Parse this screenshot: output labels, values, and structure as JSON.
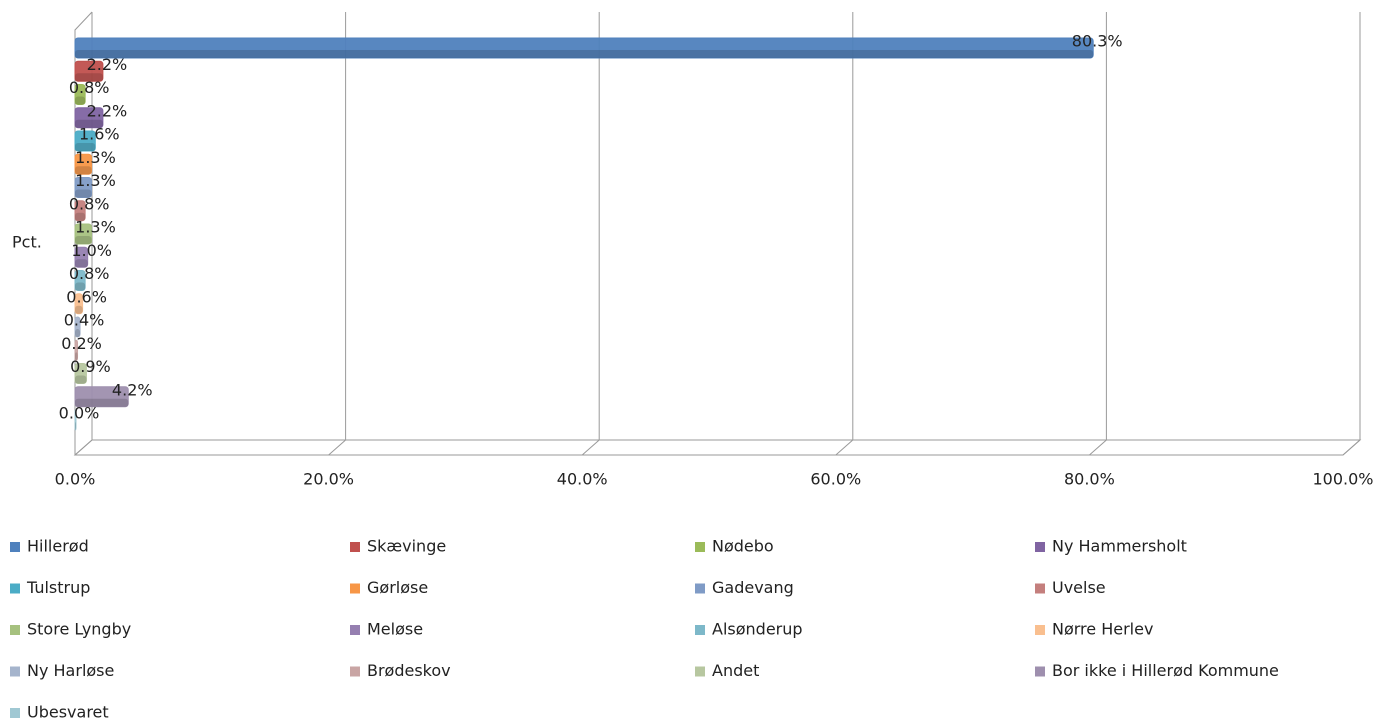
{
  "chart_data": {
    "type": "bar",
    "orientation": "horizontal",
    "categories": [
      "Pct."
    ],
    "series": [
      {
        "name": "Hillerød",
        "color": "#4F81BD",
        "values": [
          80.3
        ],
        "value_labels": [
          "80.3%"
        ]
      },
      {
        "name": "Skævinge",
        "color": "#C0504D",
        "values": [
          2.2
        ],
        "value_labels": [
          "2.2%"
        ]
      },
      {
        "name": "Nødebo",
        "color": "#9BBB59",
        "values": [
          0.8
        ],
        "value_labels": [
          "0.8%"
        ]
      },
      {
        "name": "Ny Hammersholt",
        "color": "#8064A2",
        "values": [
          2.2
        ],
        "value_labels": [
          "2.2%"
        ]
      },
      {
        "name": "Tulstrup",
        "color": "#4BACC6",
        "values": [
          1.6
        ],
        "value_labels": [
          "1.6%"
        ]
      },
      {
        "name": "Gørløse",
        "color": "#F79646",
        "values": [
          1.3
        ],
        "value_labels": [
          "1.3%"
        ]
      },
      {
        "name": "Gadevang",
        "color": "#7F9BC6",
        "values": [
          1.3
        ],
        "value_labels": [
          "1.3%"
        ]
      },
      {
        "name": "Uvelse",
        "color": "#C47F7D",
        "values": [
          0.8
        ],
        "value_labels": [
          "0.8%"
        ]
      },
      {
        "name": "Store Lyngby",
        "color": "#A6C17F",
        "values": [
          1.3
        ],
        "value_labels": [
          "1.3%"
        ]
      },
      {
        "name": "Meløse",
        "color": "#957FB0",
        "values": [
          1.0
        ],
        "value_labels": [
          "1.0%"
        ]
      },
      {
        "name": "Alsønderup",
        "color": "#7DB8C9",
        "values": [
          0.8
        ],
        "value_labels": [
          "0.8%"
        ]
      },
      {
        "name": "Nørre Herlev",
        "color": "#F9BF8F",
        "values": [
          0.6
        ],
        "value_labels": [
          "0.6%"
        ]
      },
      {
        "name": "Ny Harløse",
        "color": "#A5B4CC",
        "values": [
          0.4
        ],
        "value_labels": [
          "0.4%"
        ]
      },
      {
        "name": "Brødeskov",
        "color": "#C9A5A4",
        "values": [
          0.2
        ],
        "value_labels": [
          "0.2%"
        ]
      },
      {
        "name": "Andet",
        "color": "#B7C7A0",
        "values": [
          0.9
        ],
        "value_labels": [
          "0.9%"
        ]
      },
      {
        "name": "Bor ikke i Hillerød Kommune",
        "color": "#9E8FAE",
        "values": [
          4.2
        ],
        "value_labels": [
          "4.2%"
        ]
      },
      {
        "name": "Ubesvaret",
        "color": "#A0C8D3",
        "values": [
          0.0
        ],
        "value_labels": [
          "0.0%"
        ]
      }
    ],
    "xlim": [
      0,
      100
    ],
    "xticks": [
      {
        "value": 0,
        "label": "0.0%"
      },
      {
        "value": 20,
        "label": "20.0%"
      },
      {
        "value": 40,
        "label": "40.0%"
      },
      {
        "value": 60,
        "label": "60.0%"
      },
      {
        "value": 80,
        "label": "80.0%"
      },
      {
        "value": 100,
        "label": "100.0%"
      }
    ],
    "grid": true,
    "legend": "bottom"
  }
}
